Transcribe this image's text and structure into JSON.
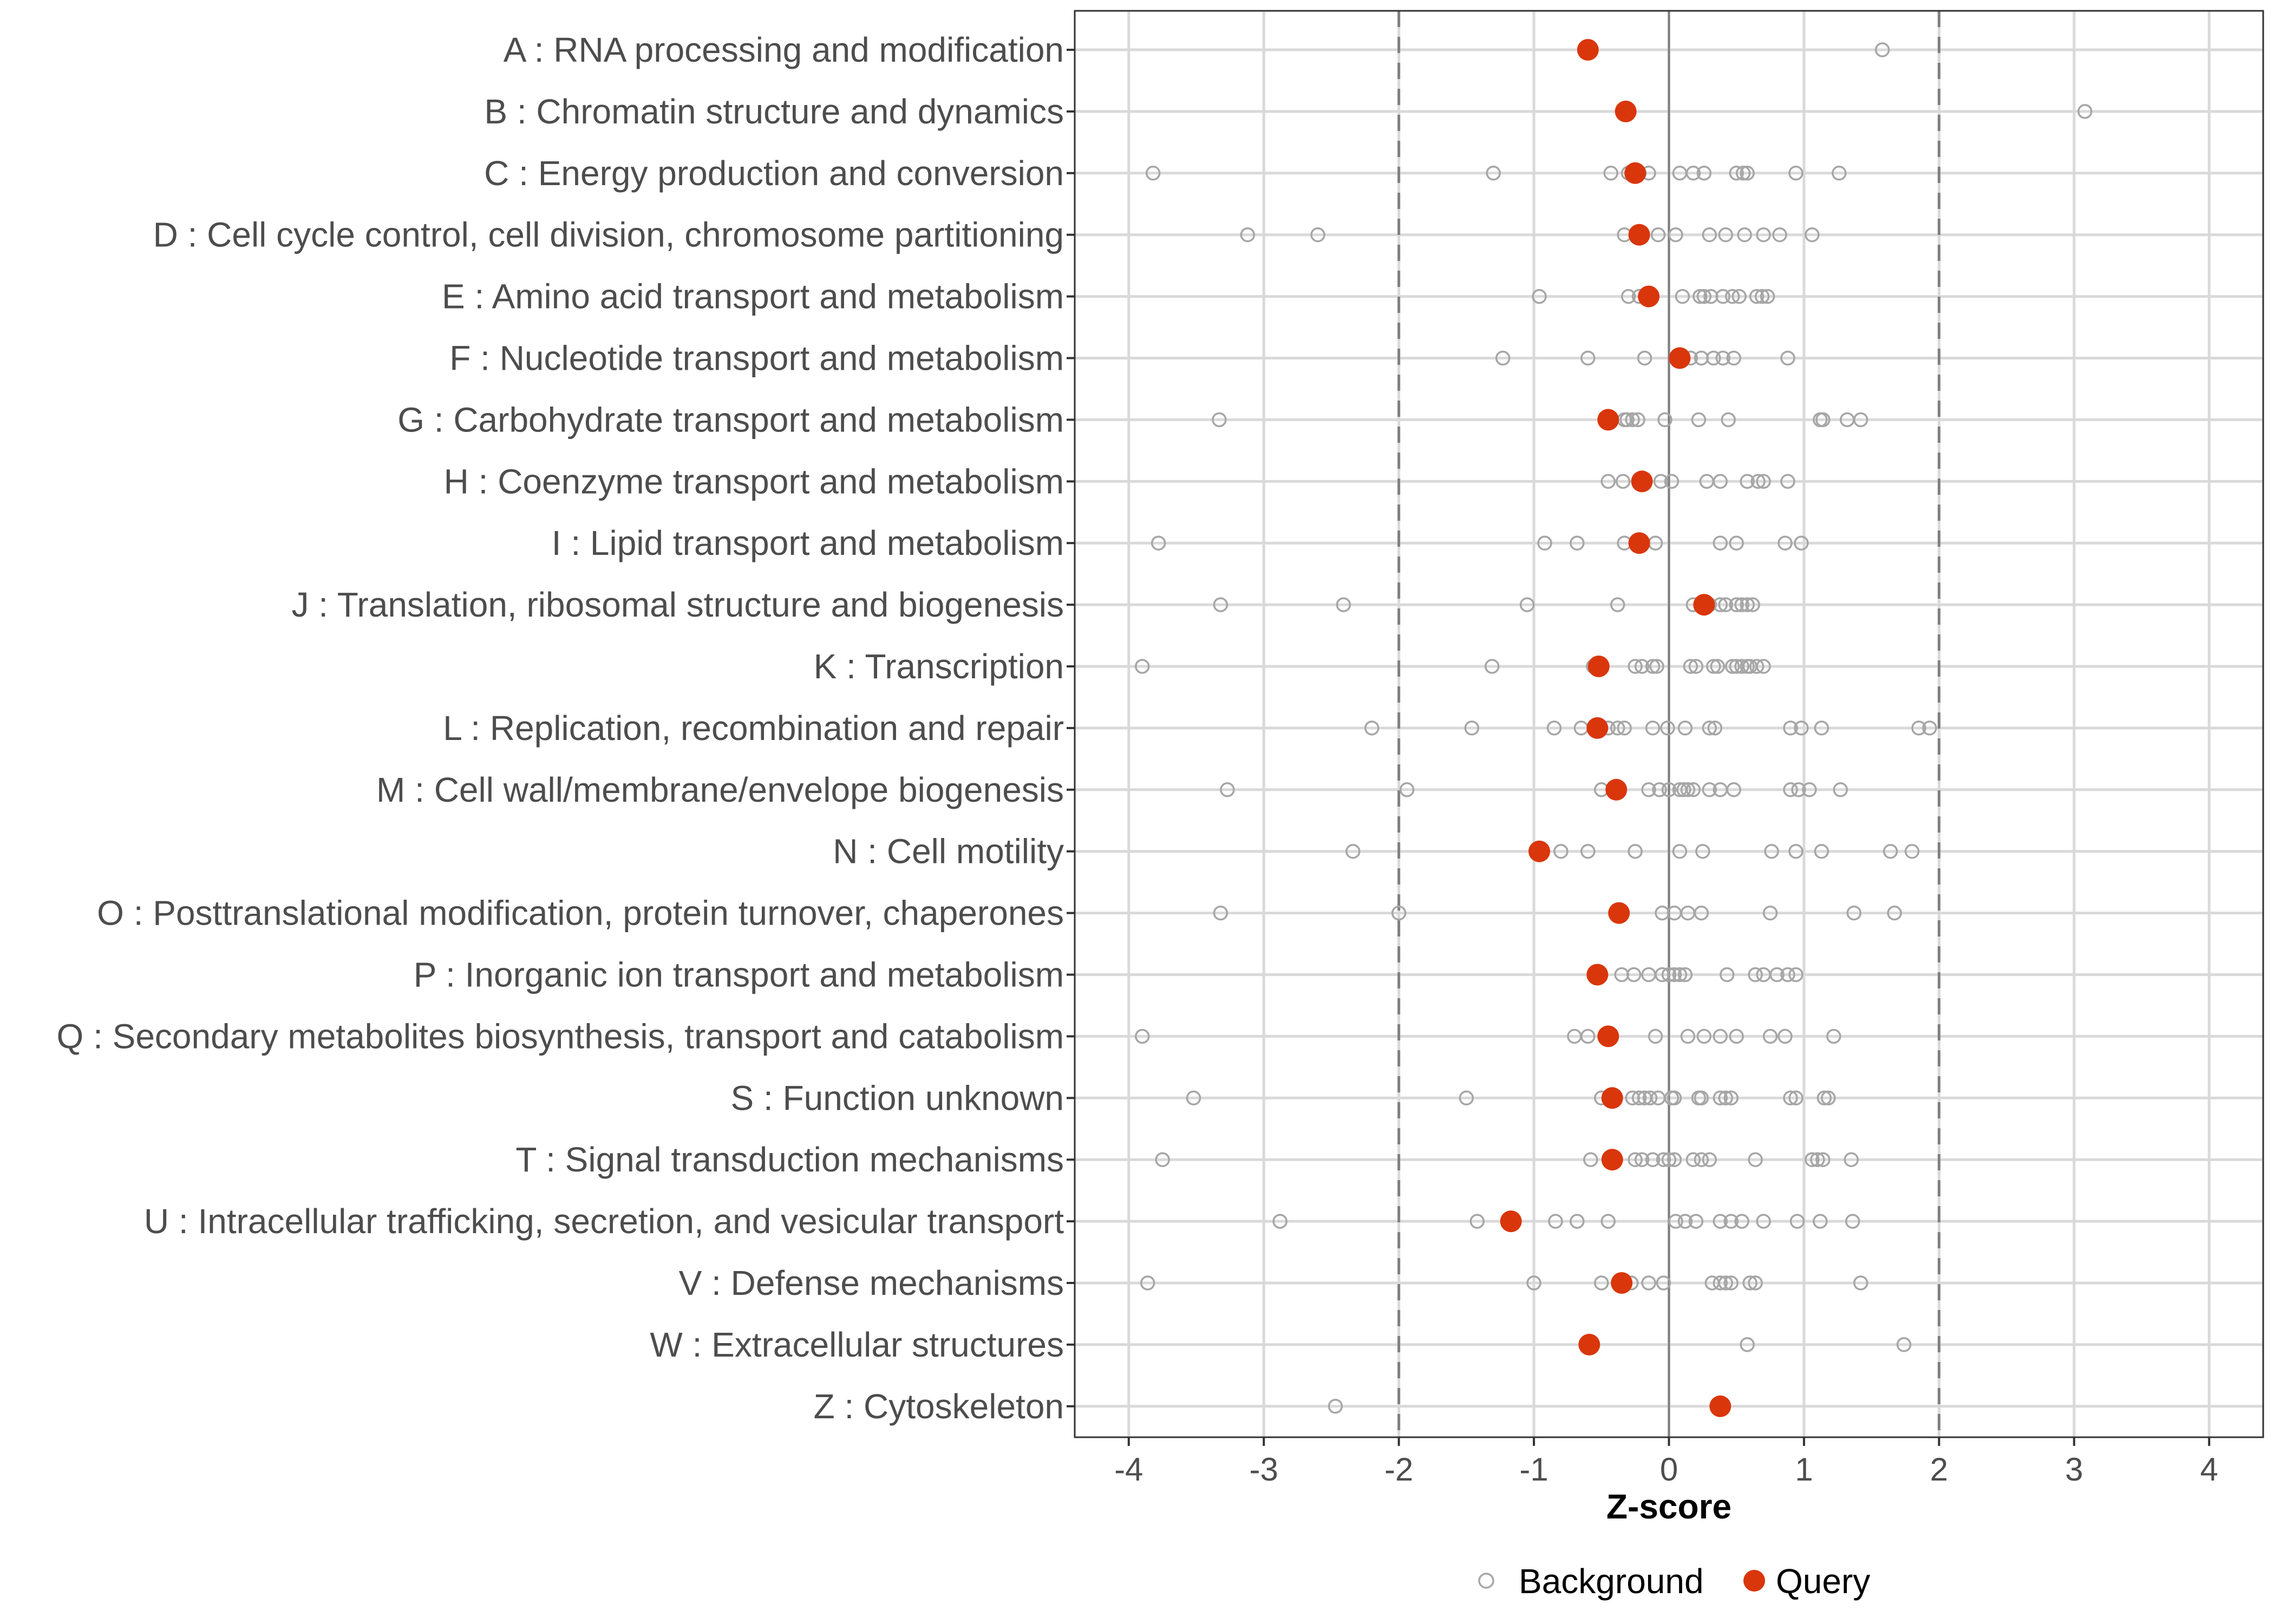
{
  "chart_data": {
    "type": "scatter",
    "xlabel": "Z-score",
    "xlim": [
      -4.4,
      4.4
    ],
    "xticks": [
      -4,
      -3,
      -2,
      -1,
      0,
      1,
      2,
      3,
      4
    ],
    "reference_lines": {
      "zero": 0,
      "dashed": [
        -2,
        2
      ]
    },
    "legend": {
      "position": "bottom",
      "entries": [
        "Background",
        "Query"
      ]
    },
    "colors": {
      "background": "#a6a6a6",
      "query": "#d9360b",
      "grid": "#d9d9d9",
      "zero_line": "#7f7f7f",
      "dashed": "#808080",
      "text": "#4d4d4d"
    },
    "categories": [
      "A : RNA processing and modification",
      "B : Chromatin structure and dynamics",
      "C : Energy production and conversion",
      "D : Cell cycle control, cell division, chromosome partitioning",
      "E : Amino acid transport and metabolism",
      "F : Nucleotide transport and metabolism",
      "G : Carbohydrate transport and metabolism",
      "H : Coenzyme transport and metabolism",
      "I : Lipid transport and metabolism",
      "J : Translation, ribosomal structure and biogenesis",
      "K : Transcription",
      "L : Replication, recombination and repair",
      "M : Cell wall/membrane/envelope biogenesis",
      "N : Cell motility",
      "O : Posttranslational modification, protein turnover, chaperones",
      "P : Inorganic ion transport and metabolism",
      "Q : Secondary metabolites biosynthesis, transport and catabolism",
      "S : Function unknown",
      "T : Signal transduction mechanisms",
      "U : Intracellular trafficking, secretion, and vesicular transport",
      "V : Defense mechanisms",
      "W : Extracellular structures",
      "Z : Cytoskeleton"
    ],
    "series": [
      {
        "name": "Background",
        "values": [
          [
            1.58
          ],
          [
            3.08
          ],
          [
            -3.82,
            -1.3,
            -0.43,
            -0.3,
            -0.22,
            -0.15,
            0.08,
            0.18,
            0.26,
            0.5,
            0.55,
            0.58,
            0.94,
            1.26
          ],
          [
            -3.12,
            -2.6,
            -0.33,
            -0.2,
            -0.08,
            0.05,
            0.3,
            0.42,
            0.56,
            0.7,
            0.82,
            1.06
          ],
          [
            -0.96,
            -0.3,
            -0.22,
            0.1,
            0.23,
            0.26,
            0.31,
            0.4,
            0.47,
            0.52,
            0.65,
            0.69,
            0.73
          ],
          [
            -1.23,
            -0.6,
            -0.18,
            0.1,
            0.16,
            0.24,
            0.33,
            0.4,
            0.48,
            0.88
          ],
          [
            -3.33,
            -0.33,
            -0.31,
            -0.27,
            -0.23,
            -0.03,
            0.22,
            0.44,
            1.12,
            1.14,
            1.32,
            1.42
          ],
          [
            -0.45,
            -0.34,
            -0.18,
            -0.06,
            0.02,
            0.28,
            0.38,
            0.58,
            0.66,
            0.7,
            0.88
          ],
          [
            -3.78,
            -0.92,
            -0.68,
            -0.33,
            -0.1,
            0.38,
            0.5,
            0.86,
            0.98
          ],
          [
            -3.32,
            -2.41,
            -1.05,
            -0.38,
            0.18,
            0.24,
            0.3,
            0.38,
            0.42,
            0.5,
            0.54,
            0.58,
            0.62
          ],
          [
            -3.9,
            -1.31,
            -0.56,
            -0.25,
            -0.2,
            -0.12,
            -0.09,
            0.16,
            0.2,
            0.33,
            0.36,
            0.47,
            0.5,
            0.54,
            0.58,
            0.6,
            0.65,
            0.7
          ],
          [
            -2.2,
            -1.46,
            -0.85,
            -0.65,
            -0.45,
            -0.38,
            -0.33,
            -0.12,
            -0.01,
            0.12,
            0.3,
            0.34,
            0.9,
            0.98,
            1.13,
            1.85,
            1.93
          ],
          [
            -3.27,
            -1.94,
            -0.5,
            -0.15,
            -0.07,
            0.0,
            0.08,
            0.11,
            0.14,
            0.18,
            0.3,
            0.38,
            0.48,
            0.9,
            0.96,
            1.04,
            1.27
          ],
          [
            -2.34,
            -0.8,
            -0.6,
            -0.25,
            0.08,
            0.25,
            0.76,
            0.94,
            1.13,
            1.64,
            1.8
          ],
          [
            -3.32,
            -2.0,
            -0.05,
            0.04,
            0.14,
            0.24,
            0.75,
            1.37,
            1.67
          ],
          [
            -0.35,
            -0.26,
            -0.15,
            -0.05,
            0.0,
            0.04,
            0.08,
            0.12,
            0.43,
            0.64,
            0.7,
            0.8,
            0.88,
            0.94
          ],
          [
            -3.9,
            -0.7,
            -0.6,
            -0.1,
            0.14,
            0.26,
            0.38,
            0.5,
            0.75,
            0.86,
            1.22
          ],
          [
            -3.52,
            -1.5,
            -0.5,
            -0.27,
            -0.22,
            -0.18,
            -0.14,
            -0.08,
            0.02,
            0.04,
            0.22,
            0.24,
            0.38,
            0.42,
            0.46,
            0.9,
            0.94,
            1.15,
            1.18
          ],
          [
            -3.75,
            -0.58,
            -0.25,
            -0.2,
            -0.12,
            -0.04,
            0.0,
            0.04,
            0.18,
            0.24,
            0.3,
            0.64,
            1.06,
            1.1,
            1.14,
            1.35
          ],
          [
            -2.88,
            -1.42,
            -0.84,
            -0.68,
            -0.45,
            0.05,
            0.12,
            0.2,
            0.38,
            0.46,
            0.54,
            0.7,
            0.95,
            1.12,
            1.36
          ],
          [
            -3.86,
            -1.0,
            -0.5,
            -0.28,
            -0.15,
            -0.04,
            0.32,
            0.38,
            0.42,
            0.46,
            0.6,
            0.64,
            1.42
          ],
          [
            0.58,
            1.74
          ],
          [
            -2.47
          ]
        ]
      },
      {
        "name": "Query",
        "values": [
          -0.6,
          -0.32,
          -0.25,
          -0.22,
          -0.15,
          0.08,
          -0.45,
          -0.2,
          -0.22,
          0.26,
          -0.52,
          -0.53,
          -0.39,
          -0.96,
          -0.37,
          -0.53,
          -0.45,
          -0.42,
          -0.42,
          -1.17,
          -0.35,
          -0.59,
          0.38
        ]
      }
    ]
  }
}
